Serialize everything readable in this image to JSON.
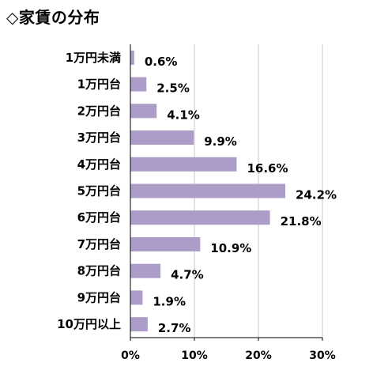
{
  "title": "◇家賃の分布",
  "chart_data": {
    "type": "bar",
    "orientation": "horizontal",
    "categories": [
      "1万円未満",
      "1万円台",
      "2万円台",
      "3万円台",
      "4万円台",
      "5万円台",
      "6万円台",
      "7万円台",
      "8万円台",
      "9万円台",
      "10万円以上"
    ],
    "values": [
      0.6,
      2.5,
      4.1,
      9.9,
      16.6,
      24.2,
      21.8,
      10.9,
      4.7,
      1.9,
      2.7
    ],
    "value_labels": [
      "0.6%",
      "2.5%",
      "4.1%",
      "9.9%",
      "16.6%",
      "24.2%",
      "21.8%",
      "10.9%",
      "4.7%",
      "1.9%",
      "2.7%"
    ],
    "xlim": [
      0,
      30
    ],
    "ticks": [
      0,
      10,
      20,
      30
    ],
    "tick_labels": [
      "0%",
      "10%",
      "20%",
      "30%"
    ],
    "grid": true,
    "bar_color": "#ab9dc8",
    "grid_color": "#c8c8c8",
    "axis_color": "#000000"
  }
}
